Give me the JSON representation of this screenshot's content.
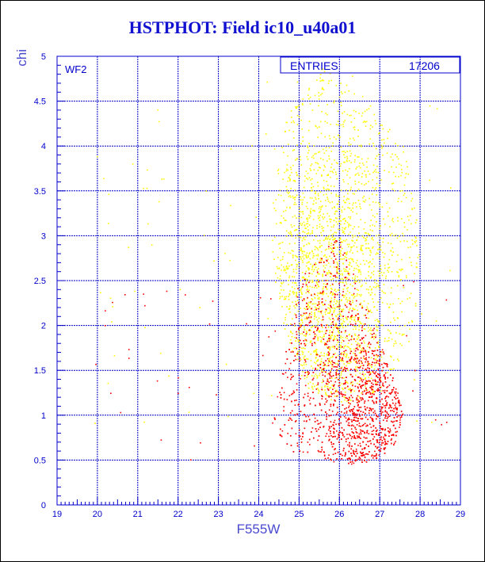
{
  "chart_data": {
    "type": "scatter",
    "title": "HSTPHOT: Field ic10_u40a01",
    "xlabel": "F555W",
    "ylabel": "chi",
    "xlim": [
      19,
      29
    ],
    "ylim": [
      0,
      5
    ],
    "panel_label": "WF2",
    "stats_label": "ENTRIES",
    "stats_value": "17206",
    "grid": true,
    "x_ticks": [
      "19",
      "20",
      "21",
      "22",
      "23",
      "24",
      "25",
      "26",
      "27",
      "28",
      "29"
    ],
    "y_ticks": [
      "0",
      "0.5",
      "1",
      "1.5",
      "2",
      "2.5",
      "3",
      "3.5",
      "4",
      "4.5",
      "5"
    ],
    "colors": {
      "frame": "#0000cc",
      "grid": "#0000cc",
      "title": "#1010d0",
      "yellow": "#ffff00",
      "red": "#ff0000"
    },
    "series": [
      {
        "color": "yellow",
        "approx_count": 9000,
        "shape_xy": [
          [
            24.8,
            4.5
          ],
          [
            25.5,
            4.9
          ],
          [
            26.5,
            4.6
          ],
          [
            27.6,
            4.0
          ],
          [
            28.0,
            2.8
          ],
          [
            27.8,
            1.8
          ],
          [
            27.0,
            1.3
          ],
          [
            26.2,
            1.1
          ],
          [
            25.2,
            1.3
          ],
          [
            24.5,
            2.0
          ],
          [
            24.3,
            3.0
          ],
          [
            24.5,
            4.0
          ]
        ]
      },
      {
        "color": "red",
        "approx_count": 8200,
        "shape_xy": [
          [
            25.0,
            2.6
          ],
          [
            26.0,
            3.0
          ],
          [
            26.6,
            2.3
          ],
          [
            27.1,
            1.7
          ],
          [
            27.6,
            1.05
          ],
          [
            27.3,
            0.6
          ],
          [
            26.5,
            0.45
          ],
          [
            25.6,
            0.5
          ],
          [
            24.8,
            0.6
          ],
          [
            24.3,
            0.9
          ],
          [
            24.6,
            1.6
          ],
          [
            24.9,
            2.2
          ]
        ]
      }
    ]
  }
}
